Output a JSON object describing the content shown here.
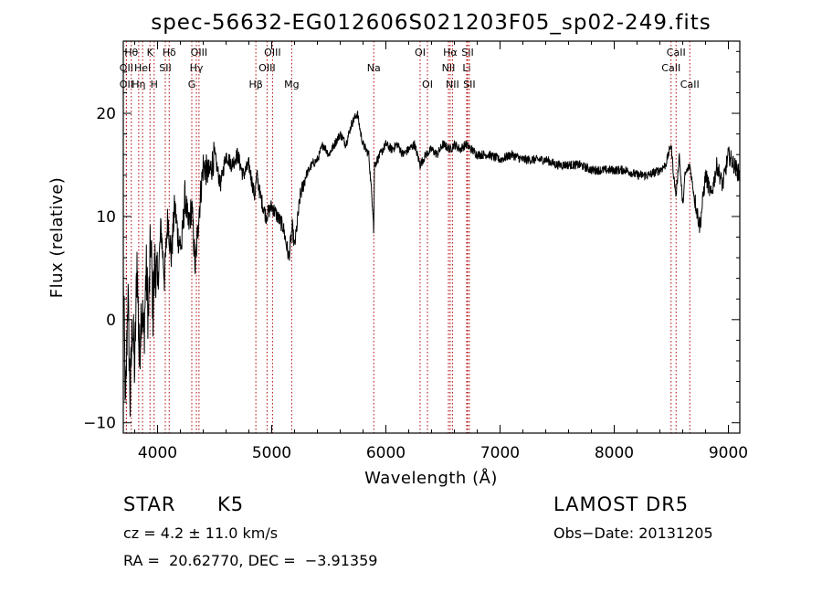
{
  "chart_data": {
    "type": "line",
    "title": "spec-56632-EG012606S021203F05_sp02-249.fits",
    "xlabel": "Wavelength (Å)",
    "ylabel": "Flux (relative)",
    "xlim": [
      3700,
      9100
    ],
    "ylim": [
      -11,
      27
    ],
    "xticks": [
      4000,
      5000,
      6000,
      7000,
      8000,
      9000
    ],
    "xtick_labels": [
      "4000",
      "5000",
      "6000",
      "7000",
      "8000",
      "9000"
    ],
    "yticks": [
      -10,
      0,
      10,
      20
    ],
    "ytick_labels": [
      "−10",
      "0",
      "10",
      "20"
    ],
    "grid": false,
    "line_color": "#000000",
    "marker_color": "#b00000",
    "series": [
      {
        "x": [
          3700,
          3720,
          3740,
          3760,
          3780,
          3800,
          3820,
          3840,
          3860,
          3880,
          3900,
          3920,
          3940,
          3960,
          3980,
          4000,
          4030,
          4060,
          4090,
          4120,
          4150,
          4180,
          4210,
          4240,
          4270,
          4300,
          4330,
          4360,
          4400,
          4450,
          4500,
          4550,
          4600,
          4650,
          4700,
          4750,
          4800,
          4850,
          4870,
          4900,
          4950,
          5000,
          5050,
          5100,
          5150,
          5180,
          5200,
          5250,
          5300,
          5350,
          5400,
          5450,
          5500,
          5550,
          5600,
          5650,
          5700,
          5750,
          5780,
          5800,
          5850,
          5890,
          5893,
          5896,
          5900,
          5950,
          6000,
          6050,
          6100,
          6150,
          6200,
          6250,
          6300,
          6350,
          6400,
          6450,
          6500,
          6563,
          6600,
          6650,
          6700,
          6750,
          6800,
          6900,
          7000,
          7100,
          7200,
          7300,
          7400,
          7500,
          7600,
          7700,
          7800,
          7900,
          8000,
          8100,
          8200,
          8300,
          8400,
          8450,
          8498,
          8520,
          8542,
          8570,
          8600,
          8620,
          8662,
          8700,
          8750,
          8800,
          8850,
          8900,
          8950,
          9000,
          9050,
          9100
        ],
        "values": [
          4,
          -9,
          3,
          -8,
          0,
          -5,
          6,
          -4,
          2,
          -2,
          5,
          0,
          8,
          1,
          6,
          3,
          9,
          4,
          10,
          6,
          11,
          8,
          7,
          12,
          9,
          11,
          5,
          10,
          15,
          14,
          16,
          13,
          16,
          15,
          16,
          14,
          15,
          12,
          14,
          12,
          10,
          11,
          10,
          9,
          6,
          9,
          7,
          12,
          14,
          15,
          15.5,
          17,
          16,
          17,
          18,
          17,
          19,
          20,
          18,
          17,
          16,
          10,
          8,
          11,
          15,
          16,
          17,
          16.5,
          17,
          16,
          16.5,
          17,
          15,
          16,
          16.5,
          16,
          17,
          16.5,
          17,
          16.5,
          17,
          16.5,
          16,
          16,
          15.5,
          16,
          15.5,
          15.5,
          15.5,
          15,
          15,
          15,
          14.5,
          14.5,
          14.5,
          14.5,
          14,
          14,
          14.5,
          15,
          17,
          14,
          12,
          16,
          11,
          14,
          15,
          12,
          9,
          14,
          12,
          15,
          13,
          16,
          15,
          14
        ]
      }
    ],
    "line_markers": [
      {
        "wl": 3727,
        "label": "OII",
        "row": 2
      },
      {
        "wl": 3727,
        "label": "OII",
        "row": 3
      },
      {
        "wl": 3770,
        "label": "Hθ",
        "row": 1
      },
      {
        "wl": 3835,
        "label": "Hη",
        "row": 3
      },
      {
        "wl": 3869,
        "label": "HeI",
        "row": 2
      },
      {
        "wl": 3934,
        "label": "K",
        "row": 1
      },
      {
        "wl": 3970,
        "label": "H",
        "row": 3
      },
      {
        "wl": 4068,
        "label": "SII",
        "row": 2
      },
      {
        "wl": 4102,
        "label": "Hδ",
        "row": 1
      },
      {
        "wl": 4300,
        "label": "G",
        "row": 3
      },
      {
        "wl": 4340,
        "label": "Hγ",
        "row": 2
      },
      {
        "wl": 4363,
        "label": "OIII",
        "row": 1
      },
      {
        "wl": 4861,
        "label": "Hβ",
        "row": 3
      },
      {
        "wl": 4959,
        "label": "OIII",
        "row": 2
      },
      {
        "wl": 5007,
        "label": "OIII",
        "row": 1
      },
      {
        "wl": 5175,
        "label": "Mg",
        "row": 3
      },
      {
        "wl": 5894,
        "label": "Na",
        "row": 2
      },
      {
        "wl": 6300,
        "label": "OI",
        "row": 1
      },
      {
        "wl": 6364,
        "label": "OI",
        "row": 3
      },
      {
        "wl": 6548,
        "label": "NII",
        "row": 2
      },
      {
        "wl": 6563,
        "label": "Hα",
        "row": 1
      },
      {
        "wl": 6583,
        "label": "NII",
        "row": 3
      },
      {
        "wl": 6708,
        "label": "Li",
        "row": 2
      },
      {
        "wl": 6716,
        "label": "SII",
        "row": 1
      },
      {
        "wl": 6731,
        "label": "SII",
        "row": 3
      },
      {
        "wl": 8498,
        "label": "CaII",
        "row": 2
      },
      {
        "wl": 8542,
        "label": "CaII",
        "row": 1
      },
      {
        "wl": 8662,
        "label": "CaII",
        "row": 3
      }
    ]
  },
  "info": {
    "class_label": "STAR",
    "subclass_label": "K5",
    "survey_label": "LAMOST DR5",
    "cz_text": "cz = 4.2 ± 11.0 km/s",
    "obs_date_text": "Obs−Date: 20131205",
    "coords_text": "RA =  20.62770, DEC =  −3.91359"
  }
}
